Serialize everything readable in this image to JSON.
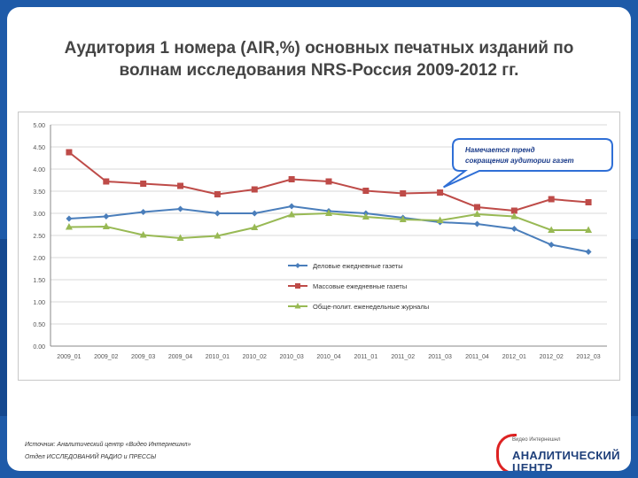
{
  "title_line1": "Аудитория 1 номера (AIR,%) основных печатных изданий по",
  "title_line2": "волнам исследования NRS-Россия 2009-2012 гг.",
  "chart_data": {
    "type": "line",
    "categories": [
      "2009_01",
      "2009_02",
      "2009_03",
      "2009_04",
      "2010_01",
      "2010_02",
      "2010_03",
      "2010_04",
      "2011_01",
      "2011_02",
      "2011_03",
      "2011_04",
      "2012_01",
      "2012_02",
      "2012_03"
    ],
    "ylim": [
      0,
      5
    ],
    "yticks": [
      "0.00",
      "0.50",
      "1.00",
      "1.50",
      "2.00",
      "2.50",
      "3.00",
      "3.50",
      "4.00",
      "4.50",
      "5.00"
    ],
    "grid": true,
    "legend_position": "center",
    "series": [
      {
        "name": "Деловые ежедневные газеты",
        "color": "#4a7ebb",
        "marker": "diamond",
        "values": [
          2.88,
          2.93,
          3.03,
          3.1,
          3.0,
          3.0,
          3.16,
          3.05,
          3.0,
          2.9,
          2.8,
          2.76,
          2.65,
          2.29,
          2.13
        ]
      },
      {
        "name": "Массовые ежедневные газеты",
        "color": "#be4b48",
        "marker": "square",
        "values": [
          4.38,
          3.72,
          3.67,
          3.62,
          3.43,
          3.54,
          3.77,
          3.72,
          3.51,
          3.45,
          3.47,
          3.14,
          3.06,
          3.32,
          3.25
        ]
      },
      {
        "name": "Обще-полит. еженедельные журналы",
        "color": "#98b954",
        "marker": "triangle",
        "values": [
          2.69,
          2.7,
          2.51,
          2.44,
          2.49,
          2.68,
          2.97,
          3.0,
          2.92,
          2.86,
          2.84,
          2.98,
          2.93,
          2.62,
          2.62
        ]
      }
    ],
    "annotation": [
      "Намечается тренд",
      "сокращения аудитории газет"
    ]
  },
  "footer": {
    "line1": "Источник: Аналитический центр «Видео Интернешнл»",
    "line2": "Отдел ИССЛЕДОВАНИЙ РАДИО и ПРЕССЫ"
  },
  "logo": {
    "sub": "Видео Интернешнл",
    "line1": "АНАЛИТИЧЕСКИЙ",
    "line2": "ЦЕНТР"
  }
}
